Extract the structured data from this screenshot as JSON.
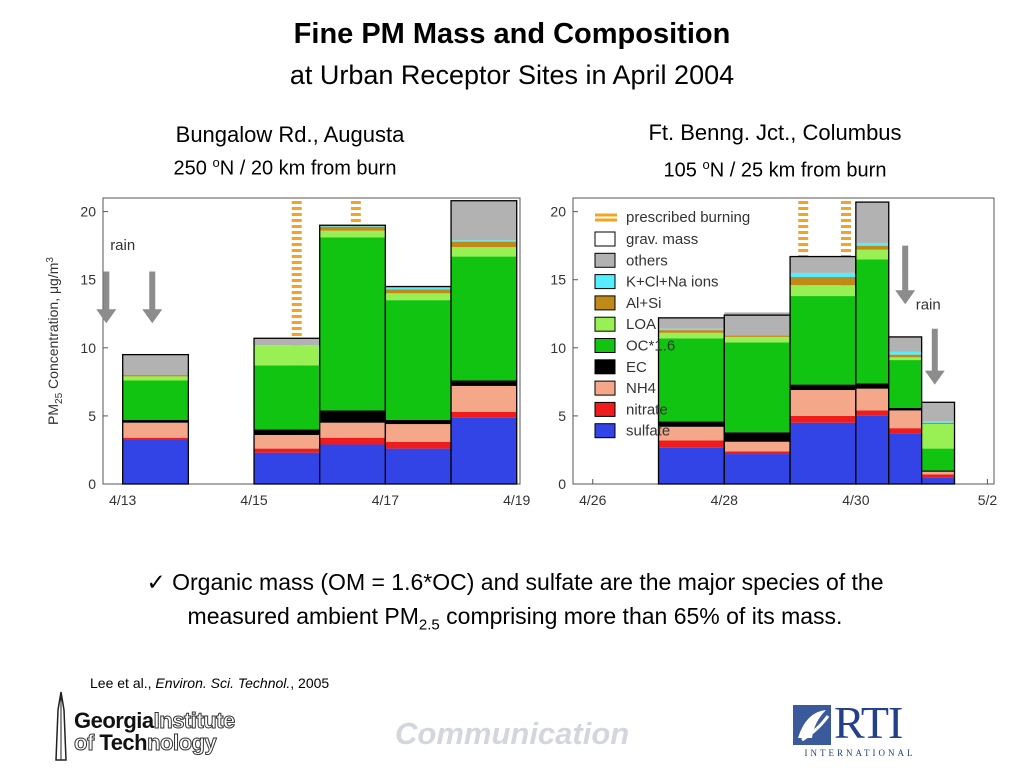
{
  "title": "Fine PM Mass and Composition",
  "subtitle": "at Urban Receptor Sites in April 2004",
  "left_site": {
    "name": "Bungalow Rd., Augusta",
    "deg": "250 ",
    "deg_sup": "o",
    "rest": "N / 20 km from burn"
  },
  "right_site": {
    "name": "Ft. Benng. Jct., Columbus",
    "deg": "105 ",
    "deg_sup": "o",
    "rest": "N / 25 km from burn"
  },
  "bullet": {
    "check": "✓",
    "text1": "Organic mass (OM = 1.6*OC) and sulfate are the major species of the",
    "text2": "measured ambient PM",
    "sub": "2.5",
    "text3": " comprising more than 65% of its mass."
  },
  "citation": {
    "authors": "Lee et al., ",
    "journal": "Environ. Sci. Technol.",
    "year": ", 2005"
  },
  "footer": {
    "gt_line1_a": "Georgia",
    "gt_line1_b": "Institute",
    "gt_line2_a": "of ",
    "gt_line2_b": "Tech",
    "gt_line2_c": "nology",
    "communication": "Communication",
    "rti": "RTI",
    "rti_sub": "INTERNATIONAL"
  },
  "colors": {
    "sulfate": "#3344e6",
    "nitrate": "#ee1c1c",
    "NH4": "#f4a789",
    "EC": "#000000",
    "OC": "#11c411",
    "LOA": "#99f055",
    "AlSi": "#c08a18",
    "ions": "#55eeff",
    "others": "#b2b2b2",
    "burn": "#f4a420",
    "arrow": "#8c8c8c"
  },
  "chart_data": [
    {
      "type": "bar",
      "stacked": true,
      "ylabel": "PM25 Concentration, μg/m3",
      "ylim": [
        0,
        21
      ],
      "yticks": [
        0,
        5,
        10,
        15,
        20
      ],
      "xlim": [
        12.7,
        19.05
      ],
      "xticks": [
        {
          "v": 13,
          "label": "4/13"
        },
        {
          "v": 15,
          "label": "4/15"
        },
        {
          "v": 17,
          "label": "4/17"
        },
        {
          "v": 19,
          "label": "4/19"
        }
      ],
      "burn_lines": [
        15.65,
        16.55
      ],
      "annotations": [
        {
          "text": "rain",
          "x": 13.0,
          "y": 17.2
        }
      ],
      "rain_arrows": [
        {
          "x": 12.75,
          "y_top": 15.6,
          "y_bottom": 11.8
        },
        {
          "x": 13.45,
          "y_top": 15.6,
          "y_bottom": 11.8
        }
      ],
      "series_order": [
        "sulfate",
        "nitrate",
        "NH4",
        "EC",
        "OC",
        "LOA",
        "AlSi",
        "ions",
        "others"
      ],
      "bars": [
        {
          "x0": 13.0,
          "x1": 14.0,
          "grav": 9.5,
          "seg": {
            "sulfate": 3.3,
            "nitrate": 0.1,
            "NH4": 1.1,
            "EC": 0.2,
            "OC": 2.9,
            "LOA": 0.3,
            "AlSi": 0.1,
            "ions": 0.0,
            "others": 1.5
          }
        },
        {
          "x0": 15.0,
          "x1": 16.0,
          "grav": 10.7,
          "seg": {
            "sulfate": 2.3,
            "nitrate": 0.3,
            "NH4": 1.0,
            "EC": 0.4,
            "OC": 4.7,
            "LOA": 1.5,
            "AlSi": 0.0,
            "ions": 0.0,
            "others": 0.5
          }
        },
        {
          "x0": 16.0,
          "x1": 17.0,
          "grav": 19.0,
          "seg": {
            "sulfate": 2.9,
            "nitrate": 0.5,
            "NH4": 1.1,
            "EC": 0.9,
            "OC": 12.7,
            "LOA": 0.5,
            "AlSi": 0.3,
            "ions": 0.1,
            "others": 0.0
          }
        },
        {
          "x0": 17.0,
          "x1": 18.0,
          "grav": 14.5,
          "seg": {
            "sulfate": 2.6,
            "nitrate": 0.5,
            "NH4": 1.3,
            "EC": 0.3,
            "OC": 8.8,
            "LOA": 0.5,
            "AlSi": 0.3,
            "ions": 0.1,
            "others": 0.1
          }
        },
        {
          "x0": 18.0,
          "x1": 19.0,
          "grav": 20.8,
          "seg": {
            "sulfate": 4.9,
            "nitrate": 0.4,
            "NH4": 1.9,
            "EC": 0.4,
            "OC": 9.1,
            "LOA": 0.7,
            "AlSi": 0.4,
            "ions": 0.1,
            "others": 2.9
          }
        }
      ]
    },
    {
      "type": "bar",
      "stacked": true,
      "ylim": [
        0,
        21
      ],
      "yticks": [
        0,
        5,
        10,
        15,
        20
      ],
      "xlim": [
        25.7,
        32.1
      ],
      "xticks": [
        {
          "v": 26,
          "label": "4/26"
        },
        {
          "v": 28,
          "label": "4/28"
        },
        {
          "v": 30,
          "label": "4/30"
        },
        {
          "v": 32,
          "label": "5/2"
        }
      ],
      "burn_lines": [
        29.2,
        29.85
      ],
      "annotations": [
        {
          "text": "rain",
          "x": 31.1,
          "y": 12.8
        }
      ],
      "rain_arrows": [
        {
          "x": 30.75,
          "y_top": 17.5,
          "y_bottom": 13.2
        },
        {
          "x": 31.2,
          "y_top": 11.4,
          "y_bottom": 7.3
        }
      ],
      "legend": [
        {
          "key": "burn",
          "label": "prescribed burning",
          "style": "dash"
        },
        {
          "key": "grav",
          "label": "grav. mass",
          "style": "open"
        },
        {
          "key": "others",
          "label": "others"
        },
        {
          "key": "ions",
          "label": "K+Cl+Na ions"
        },
        {
          "key": "AlSi",
          "label": "Al+Si"
        },
        {
          "key": "LOA",
          "label": "LOA"
        },
        {
          "key": "OC",
          "label": "OC*1.6"
        },
        {
          "key": "EC",
          "label": "EC"
        },
        {
          "key": "NH4",
          "label": "NH4"
        },
        {
          "key": "nitrate",
          "label": "nitrate"
        },
        {
          "key": "sulfate",
          "label": "sulfate"
        }
      ],
      "series_order": [
        "sulfate",
        "nitrate",
        "NH4",
        "EC",
        "OC",
        "LOA",
        "AlSi",
        "ions",
        "others"
      ],
      "bars": [
        {
          "x0": 27.0,
          "x1": 28.0,
          "grav": 12.2,
          "seg": {
            "sulfate": 2.7,
            "nitrate": 0.5,
            "NH4": 1.0,
            "EC": 0.4,
            "OC": 6.1,
            "LOA": 0.4,
            "AlSi": 0.2,
            "ions": 0.1,
            "others": 0.8
          }
        },
        {
          "x0": 28.0,
          "x1": 29.0,
          "grav": 12.4,
          "seg": {
            "sulfate": 2.2,
            "nitrate": 0.2,
            "NH4": 0.7,
            "EC": 0.7,
            "OC": 6.6,
            "LOA": 0.4,
            "AlSi": 0.1,
            "ions": 0.0,
            "others": 1.7
          }
        },
        {
          "x0": 29.0,
          "x1": 30.0,
          "grav": 16.7,
          "seg": {
            "sulfate": 4.5,
            "nitrate": 0.5,
            "NH4": 1.9,
            "EC": 0.4,
            "OC": 6.5,
            "LOA": 0.8,
            "AlSi": 0.6,
            "ions": 0.3,
            "others": 1.2
          }
        },
        {
          "x0": 30.0,
          "x1": 30.5,
          "grav": 20.7,
          "seg": {
            "sulfate": 5.0,
            "nitrate": 0.4,
            "NH4": 1.6,
            "EC": 0.4,
            "OC": 9.1,
            "LOA": 0.7,
            "AlSi": 0.3,
            "ions": 0.2,
            "others": 3.0
          }
        },
        {
          "x0": 30.5,
          "x1": 31.0,
          "grav": 10.8,
          "seg": {
            "sulfate": 3.7,
            "nitrate": 0.4,
            "NH4": 1.3,
            "EC": 0.2,
            "OC": 3.5,
            "LOA": 0.2,
            "AlSi": 0.2,
            "ions": 0.2,
            "others": 1.1
          }
        },
        {
          "x0": 31.0,
          "x1": 31.5,
          "grav": 6.0,
          "seg": {
            "sulfate": 0.5,
            "nitrate": 0.2,
            "NH4": 0.2,
            "EC": 0.1,
            "OC": 1.6,
            "LOA": 1.8,
            "AlSi": 0.1,
            "ions": 0.1,
            "others": 1.4
          }
        }
      ]
    }
  ]
}
